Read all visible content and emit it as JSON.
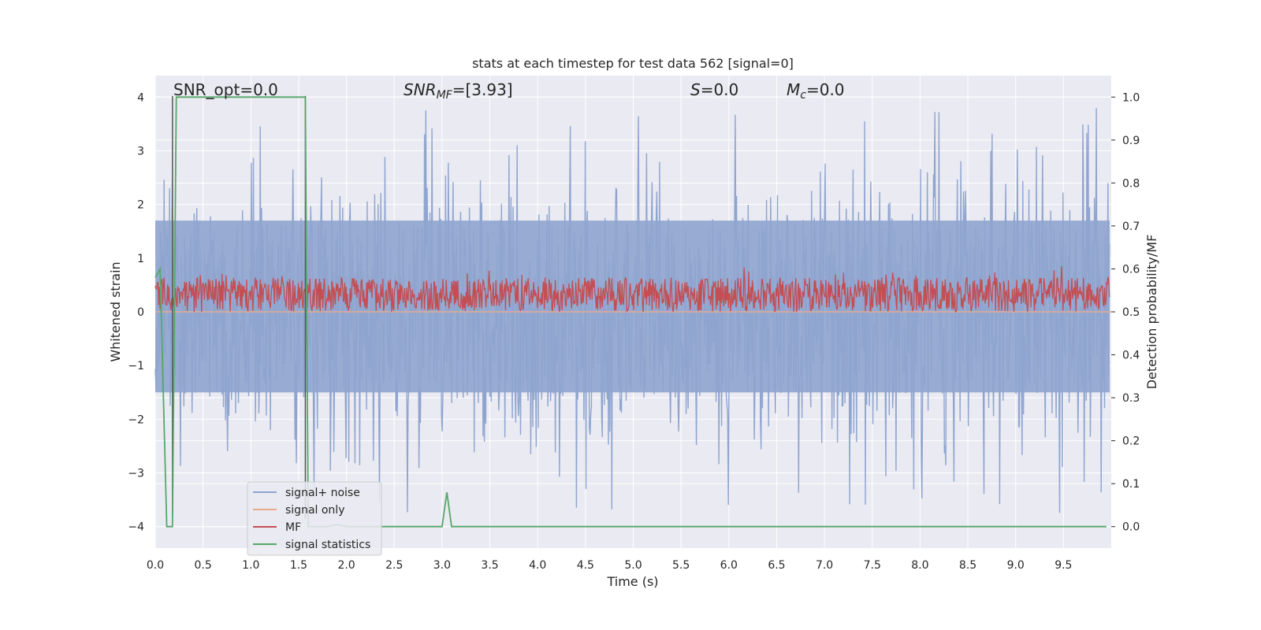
{
  "chart_data": {
    "type": "line",
    "title": "stats at each timestep for test data 562 [signal=0]",
    "xlabel": "Time (s)",
    "ylabel_left": "Whitened strain",
    "ylabel_right": "Detection probability/MF",
    "xlim": [
      0.0,
      10.0
    ],
    "ylim_left": [
      -4.4,
      4.4
    ],
    "ylim_right": [
      -0.05,
      1.05
    ],
    "x_ticks": [
      0.0,
      0.5,
      1.0,
      1.5,
      2.0,
      2.5,
      3.0,
      3.5,
      4.0,
      4.5,
      5.0,
      5.5,
      6.0,
      6.5,
      7.0,
      7.5,
      8.0,
      8.5,
      9.0,
      9.5
    ],
    "x_tick_labels": [
      "0.0",
      "0.5",
      "1.0",
      "1.5",
      "2.0",
      "2.5",
      "3.0",
      "3.5",
      "4.0",
      "4.5",
      "5.0",
      "5.5",
      "6.0",
      "6.5",
      "7.0",
      "7.5",
      "8.0",
      "8.5",
      "9.0",
      "9.5"
    ],
    "y_left_ticks": [
      -4,
      -3,
      -2,
      -1,
      0,
      1,
      2,
      3,
      4
    ],
    "y_left_tick_labels": [
      "−4",
      "−3",
      "−2",
      "−1",
      "0",
      "1",
      "2",
      "3",
      "4"
    ],
    "y_right_ticks": [
      0.0,
      0.1,
      0.2,
      0.3,
      0.4,
      0.5,
      0.6,
      0.7,
      0.8,
      0.9,
      1.0
    ],
    "y_right_tick_labels": [
      "0.0",
      "0.1",
      "0.2",
      "0.3",
      "0.4",
      "0.5",
      "0.6",
      "0.7",
      "0.8",
      "0.9",
      "1.0"
    ],
    "grid": true,
    "legend_position": "lower-left",
    "annotations": {
      "snr_opt": "SNR_opt=0.0",
      "snr_mf_sym": "SNR",
      "snr_mf_sub": "MF",
      "snr_mf_val": "=[3.93]",
      "s_sym": "S",
      "s_val": "=0.0",
      "mc_sym": "M",
      "mc_sub": "c",
      "mc_val": "=0.0"
    },
    "vertical_markers_x": [
      0.18,
      1.57
    ],
    "series": [
      {
        "name": "signal+ noise",
        "axis": "left",
        "color": "#8fa5cf",
        "style": "dense noise trace",
        "amplitude_range": [
          -3.85,
          4.05
        ],
        "band_range": [
          -1.5,
          1.7
        ]
      },
      {
        "name": "signal only",
        "axis": "left",
        "color": "#e8a98d",
        "x": [
          0.0,
          10.0
        ],
        "y": [
          0.0,
          0.0
        ]
      },
      {
        "name": "MF",
        "axis": "right",
        "color": "#c44e52",
        "style": "dense noise trace",
        "amplitude_range": [
          0.5,
          0.62
        ]
      },
      {
        "name": "signal statistics",
        "axis": "right",
        "color": "#55a868",
        "x": [
          0.0,
          0.05,
          0.12,
          0.18,
          0.22,
          0.25,
          1.55,
          1.57,
          1.6,
          1.8,
          1.9,
          2.0,
          3.0,
          3.05,
          3.1,
          3.15,
          9.95
        ],
        "y": [
          0.58,
          0.6,
          0.0,
          0.0,
          1.0,
          1.0,
          1.0,
          1.0,
          0.0,
          0.0,
          0.005,
          0.0,
          0.0,
          0.08,
          0.0,
          0.0,
          0.0
        ]
      }
    ]
  }
}
